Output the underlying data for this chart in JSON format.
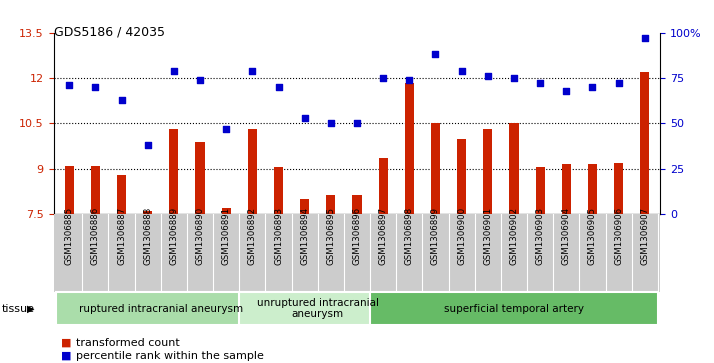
{
  "title": "GDS5186 / 42035",
  "samples": [
    "GSM1306885",
    "GSM1306886",
    "GSM1306887",
    "GSM1306888",
    "GSM1306889",
    "GSM1306890",
    "GSM1306891",
    "GSM1306892",
    "GSM1306893",
    "GSM1306894",
    "GSM1306895",
    "GSM1306896",
    "GSM1306897",
    "GSM1306898",
    "GSM1306899",
    "GSM1306900",
    "GSM1306901",
    "GSM1306902",
    "GSM1306903",
    "GSM1306904",
    "GSM1306905",
    "GSM1306906",
    "GSM1306907"
  ],
  "bar_values": [
    9.1,
    9.1,
    8.8,
    7.6,
    10.3,
    9.9,
    7.7,
    10.3,
    9.05,
    8.0,
    8.15,
    8.15,
    9.35,
    11.85,
    10.5,
    10.0,
    10.3,
    10.5,
    9.05,
    9.15,
    9.15,
    9.2,
    12.2
  ],
  "dot_values": [
    71,
    70,
    63,
    38,
    79,
    74,
    47,
    79,
    70,
    53,
    50,
    50,
    75,
    74,
    88,
    79,
    76,
    75,
    72,
    68,
    70,
    72,
    97
  ],
  "bar_color": "#cc2200",
  "dot_color": "#0000cc",
  "ylim_left": [
    7.5,
    13.5
  ],
  "ylim_right": [
    0,
    100
  ],
  "yticks_left": [
    7.5,
    9.0,
    10.5,
    12.0,
    13.5
  ],
  "yticks_right": [
    0,
    25,
    50,
    75,
    100
  ],
  "ytick_labels_left": [
    "7.5",
    "9",
    "10.5",
    "12",
    "13.5"
  ],
  "ytick_labels_right": [
    "0",
    "25",
    "50",
    "75",
    "100%"
  ],
  "hlines": [
    9.0,
    10.5,
    12.0
  ],
  "groups": [
    {
      "label": "ruptured intracranial aneurysm",
      "start": 0,
      "end": 7,
      "color": "#aaddaa"
    },
    {
      "label": "unruptured intracranial\naneurysm",
      "start": 7,
      "end": 12,
      "color": "#cceecc"
    },
    {
      "label": "superficial temporal artery",
      "start": 12,
      "end": 22,
      "color": "#66bb66"
    }
  ],
  "tissue_label": "tissue",
  "legend_bar": "transformed count",
  "legend_dot": "percentile rank within the sample",
  "tick_bg_color": "#cccccc",
  "plot_bg": "#ffffff"
}
